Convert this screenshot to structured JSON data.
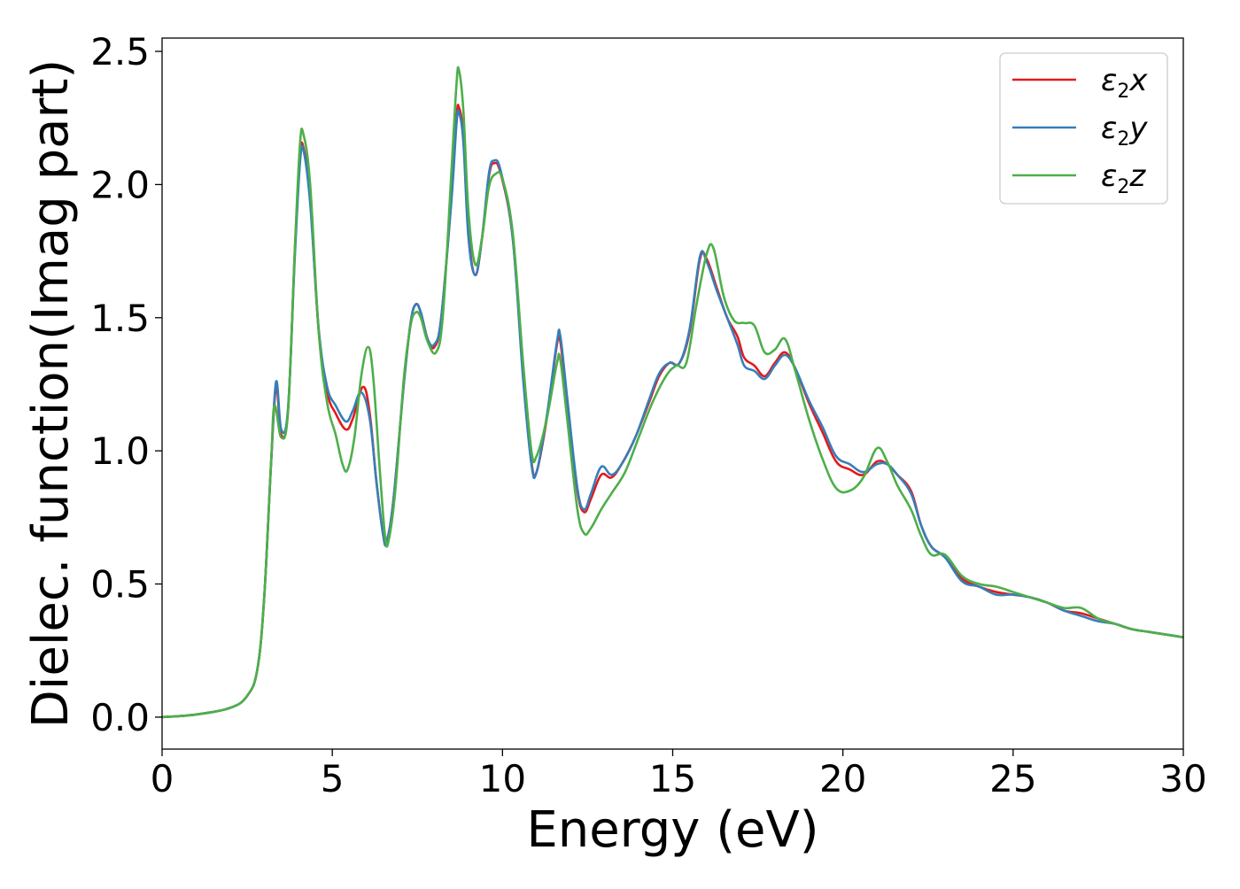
{
  "chart_data": {
    "type": "line",
    "title": "",
    "xlabel": "Energy (eV)",
    "ylabel": "Dielec. function(Imag part)",
    "xlim": [
      0,
      30
    ],
    "ylim": [
      -0.12,
      2.55
    ],
    "x_ticks": [
      0,
      5,
      10,
      15,
      20,
      25,
      30
    ],
    "x_tick_labels": [
      "0",
      "5",
      "10",
      "15",
      "20",
      "25",
      "30"
    ],
    "y_ticks": [
      0.0,
      0.5,
      1.0,
      1.5,
      2.0,
      2.5
    ],
    "y_tick_labels": [
      "0.0",
      "0.5",
      "1.0",
      "1.5",
      "2.0",
      "2.5"
    ],
    "grid": false,
    "legend_position": "top-right",
    "series": [
      {
        "name": "ε2x",
        "name_base": "ε",
        "name_sub": "2",
        "name_suffix": "x",
        "color": "#e41a1c",
        "points": [
          [
            0,
            0
          ],
          [
            1,
            0.01
          ],
          [
            2,
            0.035
          ],
          [
            2.5,
            0.08
          ],
          [
            2.8,
            0.18
          ],
          [
            3.0,
            0.45
          ],
          [
            3.2,
            0.95
          ],
          [
            3.35,
            1.24
          ],
          [
            3.5,
            1.06
          ],
          [
            3.7,
            1.15
          ],
          [
            3.9,
            1.75
          ],
          [
            4.05,
            2.1
          ],
          [
            4.15,
            2.14
          ],
          [
            4.35,
            1.95
          ],
          [
            4.6,
            1.45
          ],
          [
            4.85,
            1.22
          ],
          [
            5.1,
            1.14
          ],
          [
            5.4,
            1.08
          ],
          [
            5.6,
            1.12
          ],
          [
            5.9,
            1.24
          ],
          [
            6.1,
            1.14
          ],
          [
            6.3,
            0.88
          ],
          [
            6.5,
            0.68
          ],
          [
            6.6,
            0.66
          ],
          [
            6.8,
            0.82
          ],
          [
            7.1,
            1.25
          ],
          [
            7.3,
            1.48
          ],
          [
            7.45,
            1.55
          ],
          [
            7.6,
            1.52
          ],
          [
            7.8,
            1.42
          ],
          [
            8.0,
            1.39
          ],
          [
            8.2,
            1.5
          ],
          [
            8.5,
            1.95
          ],
          [
            8.65,
            2.25
          ],
          [
            8.72,
            2.29
          ],
          [
            8.85,
            2.18
          ],
          [
            9.0,
            1.82
          ],
          [
            9.2,
            1.66
          ],
          [
            9.4,
            1.8
          ],
          [
            9.6,
            2.03
          ],
          [
            9.75,
            2.08
          ],
          [
            9.95,
            2.04
          ],
          [
            10.3,
            1.8
          ],
          [
            10.6,
            1.3
          ],
          [
            10.85,
            0.96
          ],
          [
            11.0,
            0.92
          ],
          [
            11.3,
            1.12
          ],
          [
            11.6,
            1.4
          ],
          [
            11.7,
            1.41
          ],
          [
            11.9,
            1.18
          ],
          [
            12.2,
            0.85
          ],
          [
            12.4,
            0.77
          ],
          [
            12.6,
            0.82
          ],
          [
            12.9,
            0.91
          ],
          [
            13.2,
            0.9
          ],
          [
            13.5,
            0.95
          ],
          [
            13.9,
            1.05
          ],
          [
            14.3,
            1.18
          ],
          [
            14.6,
            1.28
          ],
          [
            14.9,
            1.33
          ],
          [
            15.2,
            1.33
          ],
          [
            15.5,
            1.45
          ],
          [
            15.8,
            1.72
          ],
          [
            16.0,
            1.72
          ],
          [
            16.3,
            1.61
          ],
          [
            16.6,
            1.5
          ],
          [
            16.9,
            1.43
          ],
          [
            17.1,
            1.35
          ],
          [
            17.4,
            1.32
          ],
          [
            17.7,
            1.28
          ],
          [
            18.0,
            1.33
          ],
          [
            18.3,
            1.37
          ],
          [
            18.6,
            1.31
          ],
          [
            19.0,
            1.18
          ],
          [
            19.4,
            1.07
          ],
          [
            19.8,
            0.96
          ],
          [
            20.2,
            0.93
          ],
          [
            20.6,
            0.91
          ],
          [
            21.0,
            0.96
          ],
          [
            21.3,
            0.95
          ],
          [
            21.6,
            0.91
          ],
          [
            22.0,
            0.85
          ],
          [
            22.3,
            0.72
          ],
          [
            22.6,
            0.64
          ],
          [
            23.0,
            0.6
          ],
          [
            23.5,
            0.52
          ],
          [
            24.0,
            0.49
          ],
          [
            24.5,
            0.47
          ],
          [
            25.0,
            0.46
          ],
          [
            25.5,
            0.45
          ],
          [
            26.0,
            0.43
          ],
          [
            26.5,
            0.4
          ],
          [
            27.0,
            0.39
          ],
          [
            27.5,
            0.37
          ],
          [
            28.0,
            0.35
          ],
          [
            28.5,
            0.33
          ],
          [
            29.0,
            0.32
          ],
          [
            29.5,
            0.31
          ],
          [
            30,
            0.3
          ]
        ]
      },
      {
        "name": "ε2y",
        "name_base": "ε",
        "name_sub": "2",
        "name_suffix": "y",
        "color": "#377eb8",
        "points": [
          [
            0,
            0
          ],
          [
            1,
            0.01
          ],
          [
            2,
            0.035
          ],
          [
            2.5,
            0.08
          ],
          [
            2.8,
            0.18
          ],
          [
            3.0,
            0.45
          ],
          [
            3.2,
            0.95
          ],
          [
            3.35,
            1.26
          ],
          [
            3.5,
            1.08
          ],
          [
            3.7,
            1.16
          ],
          [
            3.9,
            1.73
          ],
          [
            4.05,
            2.08
          ],
          [
            4.15,
            2.13
          ],
          [
            4.35,
            1.93
          ],
          [
            4.6,
            1.46
          ],
          [
            4.85,
            1.24
          ],
          [
            5.1,
            1.17
          ],
          [
            5.4,
            1.11
          ],
          [
            5.6,
            1.15
          ],
          [
            5.85,
            1.22
          ],
          [
            6.1,
            1.12
          ],
          [
            6.3,
            0.88
          ],
          [
            6.5,
            0.68
          ],
          [
            6.6,
            0.66
          ],
          [
            6.8,
            0.82
          ],
          [
            7.1,
            1.25
          ],
          [
            7.3,
            1.48
          ],
          [
            7.45,
            1.55
          ],
          [
            7.6,
            1.52
          ],
          [
            7.8,
            1.42
          ],
          [
            8.0,
            1.4
          ],
          [
            8.2,
            1.5
          ],
          [
            8.5,
            1.94
          ],
          [
            8.65,
            2.23
          ],
          [
            8.72,
            2.27
          ],
          [
            8.85,
            2.16
          ],
          [
            9.0,
            1.8
          ],
          [
            9.2,
            1.66
          ],
          [
            9.4,
            1.8
          ],
          [
            9.6,
            2.04
          ],
          [
            9.75,
            2.09
          ],
          [
            9.95,
            2.05
          ],
          [
            10.3,
            1.8
          ],
          [
            10.6,
            1.28
          ],
          [
            10.85,
            0.95
          ],
          [
            11.0,
            0.92
          ],
          [
            11.3,
            1.13
          ],
          [
            11.6,
            1.41
          ],
          [
            11.7,
            1.43
          ],
          [
            11.9,
            1.2
          ],
          [
            12.2,
            0.86
          ],
          [
            12.4,
            0.78
          ],
          [
            12.6,
            0.84
          ],
          [
            12.9,
            0.94
          ],
          [
            13.2,
            0.91
          ],
          [
            13.5,
            0.95
          ],
          [
            13.9,
            1.05
          ],
          [
            14.3,
            1.19
          ],
          [
            14.6,
            1.29
          ],
          [
            14.9,
            1.33
          ],
          [
            15.2,
            1.33
          ],
          [
            15.5,
            1.46
          ],
          [
            15.8,
            1.73
          ],
          [
            16.0,
            1.71
          ],
          [
            16.3,
            1.6
          ],
          [
            16.6,
            1.5
          ],
          [
            16.9,
            1.4
          ],
          [
            17.1,
            1.32
          ],
          [
            17.4,
            1.3
          ],
          [
            17.7,
            1.27
          ],
          [
            18.0,
            1.32
          ],
          [
            18.3,
            1.36
          ],
          [
            18.6,
            1.31
          ],
          [
            19.0,
            1.19
          ],
          [
            19.4,
            1.09
          ],
          [
            19.8,
            0.98
          ],
          [
            20.2,
            0.95
          ],
          [
            20.6,
            0.92
          ],
          [
            21.0,
            0.95
          ],
          [
            21.3,
            0.95
          ],
          [
            21.6,
            0.91
          ],
          [
            22.0,
            0.84
          ],
          [
            22.3,
            0.72
          ],
          [
            22.6,
            0.64
          ],
          [
            23.0,
            0.6
          ],
          [
            23.5,
            0.51
          ],
          [
            24.0,
            0.49
          ],
          [
            24.5,
            0.46
          ],
          [
            25.0,
            0.46
          ],
          [
            25.5,
            0.45
          ],
          [
            26.0,
            0.43
          ],
          [
            26.5,
            0.4
          ],
          [
            27.0,
            0.38
          ],
          [
            27.5,
            0.36
          ],
          [
            28.0,
            0.35
          ],
          [
            28.5,
            0.33
          ],
          [
            29.0,
            0.32
          ],
          [
            29.5,
            0.31
          ],
          [
            30,
            0.3
          ]
        ]
      },
      {
        "name": "ε2z",
        "name_base": "ε",
        "name_sub": "2",
        "name_suffix": "z",
        "color": "#4daf4a",
        "points": [
          [
            0,
            0
          ],
          [
            1,
            0.01
          ],
          [
            2,
            0.035
          ],
          [
            2.5,
            0.08
          ],
          [
            2.8,
            0.18
          ],
          [
            3.0,
            0.45
          ],
          [
            3.2,
            0.95
          ],
          [
            3.3,
            1.17
          ],
          [
            3.5,
            1.05
          ],
          [
            3.7,
            1.15
          ],
          [
            3.9,
            1.76
          ],
          [
            4.05,
            2.15
          ],
          [
            4.15,
            2.19
          ],
          [
            4.35,
            2.0
          ],
          [
            4.6,
            1.45
          ],
          [
            4.85,
            1.18
          ],
          [
            5.1,
            1.06
          ],
          [
            5.3,
            0.95
          ],
          [
            5.45,
            0.93
          ],
          [
            5.65,
            1.05
          ],
          [
            5.85,
            1.28
          ],
          [
            6.05,
            1.39
          ],
          [
            6.2,
            1.28
          ],
          [
            6.4,
            0.92
          ],
          [
            6.55,
            0.68
          ],
          [
            6.65,
            0.66
          ],
          [
            6.85,
            0.85
          ],
          [
            7.1,
            1.27
          ],
          [
            7.3,
            1.47
          ],
          [
            7.45,
            1.52
          ],
          [
            7.6,
            1.5
          ],
          [
            7.8,
            1.41
          ],
          [
            8.05,
            1.37
          ],
          [
            8.25,
            1.51
          ],
          [
            8.5,
            2.05
          ],
          [
            8.65,
            2.38
          ],
          [
            8.72,
            2.43
          ],
          [
            8.85,
            2.28
          ],
          [
            9.0,
            1.9
          ],
          [
            9.2,
            1.7
          ],
          [
            9.4,
            1.8
          ],
          [
            9.6,
            1.99
          ],
          [
            9.8,
            2.04
          ],
          [
            10.0,
            2.02
          ],
          [
            10.3,
            1.82
          ],
          [
            10.6,
            1.34
          ],
          [
            10.85,
            1.0
          ],
          [
            11.0,
            0.98
          ],
          [
            11.3,
            1.12
          ],
          [
            11.6,
            1.33
          ],
          [
            11.7,
            1.34
          ],
          [
            11.9,
            1.12
          ],
          [
            12.2,
            0.78
          ],
          [
            12.4,
            0.69
          ],
          [
            12.6,
            0.71
          ],
          [
            12.9,
            0.78
          ],
          [
            13.2,
            0.84
          ],
          [
            13.6,
            0.92
          ],
          [
            14.0,
            1.05
          ],
          [
            14.4,
            1.18
          ],
          [
            14.8,
            1.28
          ],
          [
            15.1,
            1.32
          ],
          [
            15.4,
            1.33
          ],
          [
            15.7,
            1.55
          ],
          [
            16.0,
            1.74
          ],
          [
            16.2,
            1.76
          ],
          [
            16.5,
            1.58
          ],
          [
            16.8,
            1.49
          ],
          [
            17.1,
            1.48
          ],
          [
            17.4,
            1.47
          ],
          [
            17.7,
            1.37
          ],
          [
            18.0,
            1.38
          ],
          [
            18.3,
            1.42
          ],
          [
            18.6,
            1.3
          ],
          [
            19.0,
            1.12
          ],
          [
            19.4,
            0.97
          ],
          [
            19.8,
            0.86
          ],
          [
            20.2,
            0.85
          ],
          [
            20.6,
            0.9
          ],
          [
            21.0,
            1.01
          ],
          [
            21.3,
            0.96
          ],
          [
            21.6,
            0.87
          ],
          [
            22.0,
            0.78
          ],
          [
            22.3,
            0.68
          ],
          [
            22.6,
            0.61
          ],
          [
            23.0,
            0.61
          ],
          [
            23.5,
            0.53
          ],
          [
            24.0,
            0.5
          ],
          [
            24.5,
            0.49
          ],
          [
            25.0,
            0.47
          ],
          [
            25.5,
            0.45
          ],
          [
            26.0,
            0.43
          ],
          [
            26.5,
            0.41
          ],
          [
            27.0,
            0.41
          ],
          [
            27.5,
            0.37
          ],
          [
            28.0,
            0.35
          ],
          [
            28.5,
            0.33
          ],
          [
            29.0,
            0.32
          ],
          [
            29.5,
            0.31
          ],
          [
            30,
            0.3
          ]
        ]
      }
    ]
  }
}
